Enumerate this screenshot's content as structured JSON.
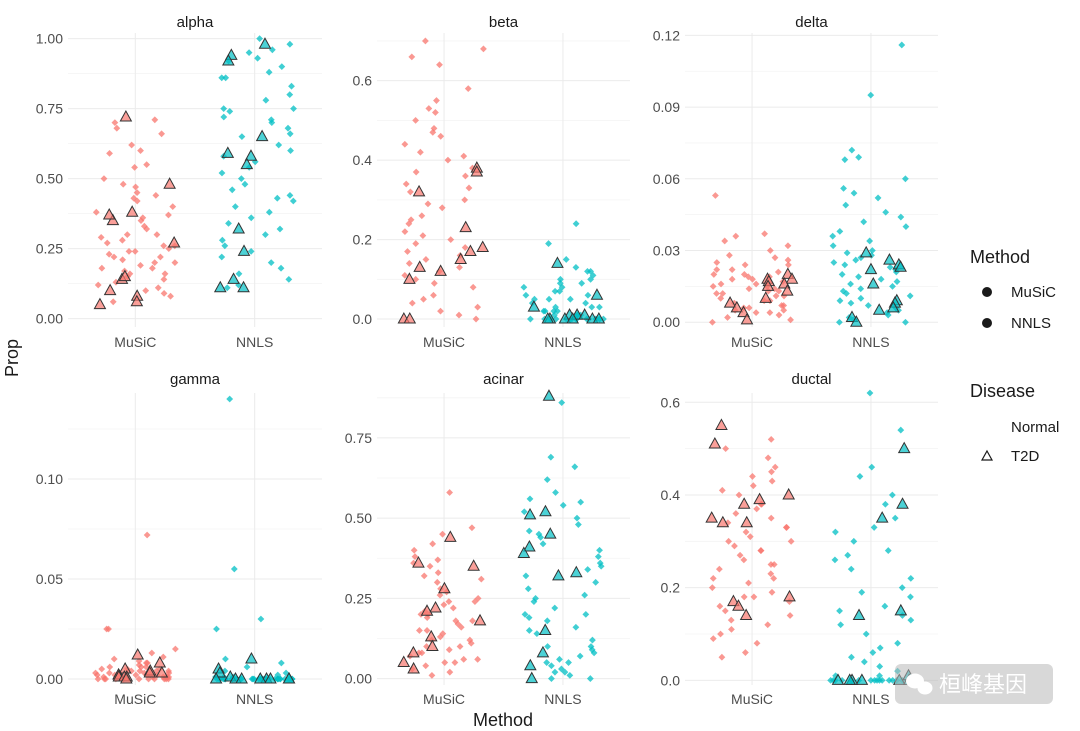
{
  "chart_data": {
    "type": "scatter",
    "style": "faceted jitter strip plot",
    "x_label": "Method",
    "y_label": "Prop",
    "categories": [
      "MuSiC",
      "NNLS"
    ],
    "colors": {
      "MuSiC": "#f8766d",
      "NNLS": "#00bfc4"
    },
    "legend": {
      "method_title": "Method",
      "method_items": [
        "MuSiC",
        "NNLS"
      ],
      "disease_title": "Disease",
      "disease_items": [
        "Normal",
        "T2D"
      ],
      "placement": "right"
    },
    "watermark": "桓峰基因",
    "grid": true,
    "panels": [
      {
        "title": "alpha",
        "ylim": [
          -0.03,
          1.02
        ],
        "yticks": [
          "0.00",
          "0.25",
          "0.50",
          "0.75",
          "1.00"
        ],
        "ytick_values": [
          0,
          0.25,
          0.5,
          0.75,
          1.0
        ],
        "music": {
          "normal": [
            0.59,
            0.71,
            0.6,
            0.62,
            0.68,
            0.66,
            0.44,
            0.47,
            0.42,
            0.45,
            0.38,
            0.36,
            0.33,
            0.3,
            0.26,
            0.28,
            0.24,
            0.22,
            0.2,
            0.18,
            0.16,
            0.14,
            0.12,
            0.1,
            0.08,
            0.06,
            0.3,
            0.27,
            0.25,
            0.23,
            0.21,
            0.19,
            0.17,
            0.15,
            0.35,
            0.5,
            0.55,
            0.4,
            0.7,
            0.13,
            0.11,
            0.09,
            0.32,
            0.29,
            0.24,
            0.22,
            0.2,
            0.18,
            0.16,
            0.26,
            0.37,
            0.43,
            0.48,
            0.54
          ],
          "t2d": [
            0.72,
            0.48,
            0.38,
            0.35,
            0.37,
            0.27,
            0.14,
            0.1,
            0.08,
            0.05,
            0.06,
            0.15
          ]
        },
        "nnls": {
          "normal": [
            1.0,
            0.98,
            0.96,
            0.93,
            0.95,
            0.9,
            0.88,
            0.86,
            0.83,
            0.8,
            0.78,
            0.75,
            0.74,
            0.72,
            0.7,
            0.68,
            0.66,
            0.65,
            0.62,
            0.6,
            0.58,
            0.56,
            0.54,
            0.52,
            0.5,
            0.48,
            0.46,
            0.44,
            0.43,
            0.42,
            0.4,
            0.38,
            0.36,
            0.34,
            0.32,
            0.3,
            0.28,
            0.26,
            0.24,
            0.22,
            0.2,
            0.18,
            0.16,
            0.14,
            0.12,
            0.11,
            0.75,
            0.92,
            0.86,
            0.71
          ],
          "t2d": [
            0.98,
            0.94,
            0.92,
            0.65,
            0.58,
            0.59,
            0.55,
            0.32,
            0.24,
            0.14,
            0.11,
            0.11
          ]
        }
      },
      {
        "title": "beta",
        "ylim": [
          -0.02,
          0.72
        ],
        "yticks": [
          "0.0",
          "0.2",
          "0.4",
          "0.6"
        ],
        "ytick_values": [
          0,
          0.2,
          0.4,
          0.6
        ],
        "music": {
          "normal": [
            0.7,
            0.68,
            0.66,
            0.64,
            0.58,
            0.55,
            0.53,
            0.5,
            0.48,
            0.46,
            0.44,
            0.42,
            0.4,
            0.38,
            0.36,
            0.34,
            0.32,
            0.3,
            0.28,
            0.26,
            0.25,
            0.24,
            0.22,
            0.2,
            0.19,
            0.18,
            0.16,
            0.15,
            0.14,
            0.13,
            0.12,
            0.11,
            0.1,
            0.09,
            0.08,
            0.06,
            0.05,
            0.04,
            0.03,
            0.02,
            0.01,
            0.0,
            0.37,
            0.29,
            0.33,
            0.41,
            0.47,
            0.52,
            0.21,
            0.17
          ],
          "t2d": [
            0.38,
            0.37,
            0.32,
            0.23,
            0.18,
            0.17,
            0.15,
            0.13,
            0.12,
            0.1,
            0.0,
            0.0
          ]
        },
        "nnls": {
          "normal": [
            0.24,
            0.19,
            0.15,
            0.13,
            0.12,
            0.11,
            0.1,
            0.09,
            0.09,
            0.08,
            0.07,
            0.07,
            0.06,
            0.06,
            0.05,
            0.05,
            0.04,
            0.04,
            0.03,
            0.03,
            0.03,
            0.02,
            0.02,
            0.02,
            0.01,
            0.01,
            0.01,
            0.01,
            0.0,
            0.0,
            0.0,
            0.0,
            0.0,
            0.0,
            0.0,
            0.0,
            0.0,
            0.0,
            0.0,
            0.0,
            0.0,
            0.0,
            0.0,
            0.0,
            0.0,
            0.1,
            0.08,
            0.12,
            0.05,
            0.02
          ],
          "t2d": [
            0.14,
            0.06,
            0.03,
            0.01,
            0.01,
            0.0,
            0.0,
            0.0,
            0.0,
            0.0,
            0.0,
            0.01
          ]
        }
      },
      {
        "title": "delta",
        "ylim": [
          -0.002,
          0.121
        ],
        "yticks": [
          "0.00",
          "0.03",
          "0.06",
          "0.09",
          "0.12"
        ],
        "ytick_values": [
          0,
          0.03,
          0.06,
          0.09,
          0.12
        ],
        "music": {
          "normal": [
            0.053,
            0.037,
            0.036,
            0.034,
            0.032,
            0.03,
            0.028,
            0.027,
            0.026,
            0.025,
            0.024,
            0.022,
            0.021,
            0.02,
            0.019,
            0.018,
            0.017,
            0.016,
            0.015,
            0.014,
            0.013,
            0.012,
            0.011,
            0.01,
            0.009,
            0.008,
            0.007,
            0.006,
            0.005,
            0.004,
            0.003,
            0.002,
            0.001,
            0.0,
            0.012,
            0.015,
            0.018,
            0.02,
            0.009,
            0.007,
            0.005,
            0.014,
            0.016,
            0.011,
            0.013,
            0.019,
            0.022,
            0.024,
            0.006,
            0.004
          ],
          "t2d": [
            0.02,
            0.018,
            0.018,
            0.017,
            0.016,
            0.015,
            0.013,
            0.01,
            0.008,
            0.006,
            0.004,
            0.001
          ]
        },
        "nnls": {
          "normal": [
            0.116,
            0.095,
            0.072,
            0.069,
            0.068,
            0.06,
            0.056,
            0.054,
            0.052,
            0.049,
            0.046,
            0.044,
            0.042,
            0.04,
            0.038,
            0.036,
            0.034,
            0.032,
            0.03,
            0.028,
            0.026,
            0.024,
            0.022,
            0.02,
            0.018,
            0.016,
            0.014,
            0.012,
            0.01,
            0.008,
            0.006,
            0.004,
            0.002,
            0.0,
            0.0,
            0.001,
            0.003,
            0.005,
            0.007,
            0.009,
            0.011,
            0.013,
            0.015,
            0.017,
            0.019,
            0.021,
            0.023,
            0.025,
            0.027,
            0.029
          ],
          "t2d": [
            0.029,
            0.026,
            0.024,
            0.023,
            0.022,
            0.016,
            0.009,
            0.008,
            0.006,
            0.005,
            0.002,
            0.0
          ]
        }
      },
      {
        "title": "gamma",
        "ylim": [
          -0.003,
          0.143
        ],
        "yticks": [
          "0.00",
          "0.05",
          "0.10"
        ],
        "ytick_values": [
          0,
          0.05,
          0.1
        ],
        "music": {
          "normal": [
            0.072,
            0.025,
            0.025,
            0.015,
            0.013,
            0.011,
            0.01,
            0.009,
            0.008,
            0.008,
            0.007,
            0.006,
            0.006,
            0.005,
            0.005,
            0.005,
            0.004,
            0.004,
            0.004,
            0.003,
            0.003,
            0.003,
            0.003,
            0.002,
            0.002,
            0.002,
            0.002,
            0.002,
            0.001,
            0.001,
            0.001,
            0.001,
            0.001,
            0.001,
            0.0,
            0.0,
            0.0,
            0.0,
            0.0,
            0.0,
            0.0,
            0.0,
            0.0,
            0.0,
            0.0,
            0.006,
            0.004,
            0.003,
            0.002,
            0.001
          ],
          "t2d": [
            0.012,
            0.008,
            0.005,
            0.004,
            0.003,
            0.003,
            0.002,
            0.002,
            0.001,
            0.001,
            0.001,
            0.0
          ]
        },
        "nnls": {
          "normal": [
            0.14,
            0.055,
            0.03,
            0.025,
            0.01,
            0.008,
            0.006,
            0.004,
            0.003,
            0.002,
            0.001,
            0.001,
            0.001,
            0.0,
            0.0,
            0.0,
            0.0,
            0.0,
            0.0,
            0.0,
            0.0,
            0.0,
            0.0,
            0.0,
            0.0,
            0.0,
            0.0,
            0.0,
            0.0,
            0.0,
            0.0,
            0.0,
            0.0,
            0.0,
            0.0,
            0.0,
            0.0,
            0.0,
            0.0,
            0.0,
            0.0,
            0.0,
            0.0,
            0.0,
            0.0,
            0.0,
            0.0,
            0.0,
            0.0,
            0.0
          ],
          "t2d": [
            0.01,
            0.005,
            0.003,
            0.001,
            0.0,
            0.0,
            0.0,
            0.0,
            0.0,
            0.0,
            0.0,
            0.0
          ]
        }
      },
      {
        "title": "acinar",
        "ylim": [
          -0.02,
          0.89
        ],
        "yticks": [
          "0.00",
          "0.25",
          "0.50",
          "0.75"
        ],
        "ytick_values": [
          0,
          0.25,
          0.5,
          0.75
        ],
        "music": {
          "normal": [
            0.58,
            0.47,
            0.45,
            0.42,
            0.4,
            0.38,
            0.37,
            0.36,
            0.35,
            0.33,
            0.31,
            0.3,
            0.28,
            0.27,
            0.26,
            0.25,
            0.24,
            0.23,
            0.22,
            0.21,
            0.2,
            0.19,
            0.18,
            0.17,
            0.16,
            0.15,
            0.14,
            0.13,
            0.12,
            0.11,
            0.1,
            0.09,
            0.08,
            0.07,
            0.06,
            0.05,
            0.04,
            0.03,
            0.02,
            0.01,
            0.2,
            0.15,
            0.12,
            0.08,
            0.05,
            0.32,
            0.24,
            0.18,
            0.1,
            0.06
          ],
          "t2d": [
            0.44,
            0.36,
            0.35,
            0.28,
            0.22,
            0.21,
            0.18,
            0.13,
            0.1,
            0.08,
            0.05,
            0.03
          ]
        },
        "nnls": {
          "normal": [
            0.86,
            0.69,
            0.66,
            0.62,
            0.58,
            0.56,
            0.54,
            0.52,
            0.5,
            0.48,
            0.46,
            0.44,
            0.42,
            0.4,
            0.38,
            0.36,
            0.34,
            0.32,
            0.3,
            0.28,
            0.26,
            0.24,
            0.22,
            0.2,
            0.19,
            0.18,
            0.16,
            0.14,
            0.12,
            0.1,
            0.09,
            0.08,
            0.07,
            0.06,
            0.05,
            0.04,
            0.03,
            0.02,
            0.01,
            0.0,
            0.0,
            0.02,
            0.05,
            0.1,
            0.15,
            0.2,
            0.25,
            0.35,
            0.45,
            0.55
          ],
          "t2d": [
            0.88,
            0.52,
            0.51,
            0.45,
            0.41,
            0.39,
            0.33,
            0.32,
            0.15,
            0.08,
            0.04,
            0.0
          ]
        }
      },
      {
        "title": "ductal",
        "ylim": [
          -0.01,
          0.62
        ],
        "yticks": [
          "0.0",
          "0.2",
          "0.4",
          "0.6"
        ],
        "ytick_values": [
          0,
          0.2,
          0.4,
          0.6
        ],
        "music": {
          "normal": [
            0.52,
            0.5,
            0.48,
            0.46,
            0.44,
            0.43,
            0.42,
            0.41,
            0.4,
            0.38,
            0.37,
            0.36,
            0.35,
            0.34,
            0.33,
            0.32,
            0.31,
            0.3,
            0.29,
            0.28,
            0.27,
            0.26,
            0.25,
            0.24,
            0.23,
            0.22,
            0.21,
            0.2,
            0.19,
            0.18,
            0.17,
            0.16,
            0.15,
            0.14,
            0.13,
            0.12,
            0.11,
            0.1,
            0.09,
            0.08,
            0.06,
            0.05,
            0.3,
            0.25,
            0.22,
            0.28,
            0.33,
            0.38,
            0.45,
            0.18
          ],
          "t2d": [
            0.55,
            0.51,
            0.4,
            0.39,
            0.38,
            0.35,
            0.34,
            0.34,
            0.18,
            0.17,
            0.16,
            0.14
          ]
        },
        "nnls": {
          "normal": [
            0.62,
            0.54,
            0.46,
            0.44,
            0.4,
            0.38,
            0.35,
            0.33,
            0.3,
            0.28,
            0.26,
            0.24,
            0.22,
            0.2,
            0.18,
            0.16,
            0.14,
            0.13,
            0.12,
            0.1,
            0.08,
            0.06,
            0.04,
            0.03,
            0.02,
            0.01,
            0.01,
            0.0,
            0.0,
            0.0,
            0.0,
            0.0,
            0.0,
            0.0,
            0.0,
            0.0,
            0.0,
            0.0,
            0.0,
            0.0,
            0.0,
            0.0,
            0.0,
            0.0,
            0.32,
            0.27,
            0.19,
            0.15,
            0.07,
            0.05
          ],
          "t2d": [
            0.5,
            0.38,
            0.35,
            0.15,
            0.14,
            0.01,
            0.0,
            0.0,
            0.0,
            0.0,
            0.0,
            0.0
          ]
        }
      }
    ]
  }
}
